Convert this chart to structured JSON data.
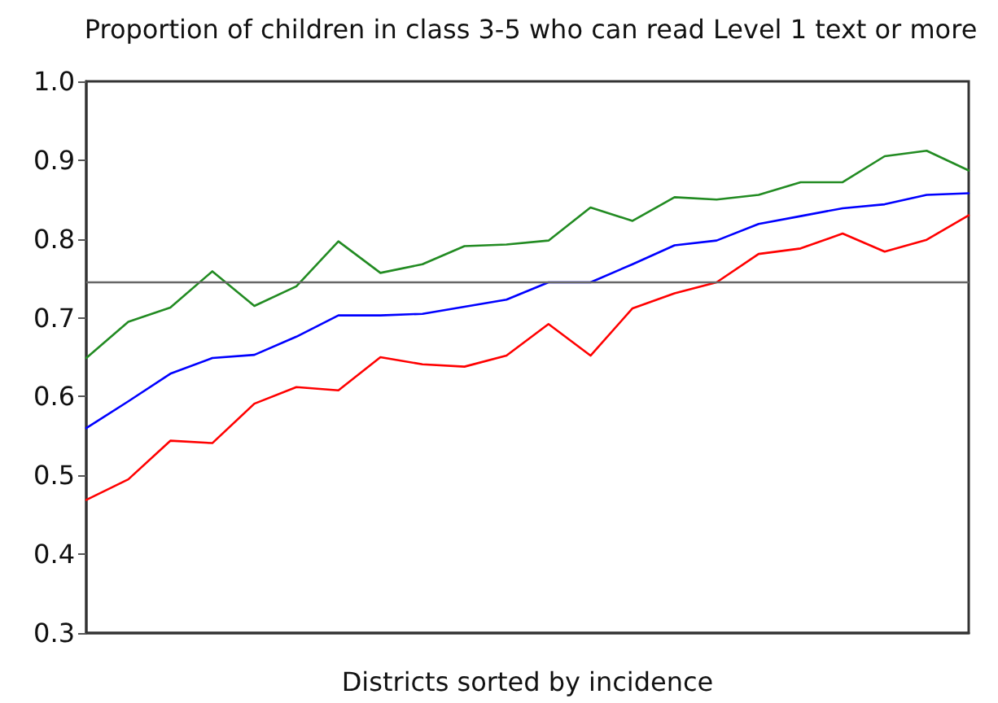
{
  "chart_data": {
    "type": "line",
    "title": "Proportion of children in class 3-5 who can read Level 1 text or more",
    "xlabel": "Districts sorted by incidence",
    "categories": [
      null,
      null,
      null,
      null,
      null,
      null,
      null,
      null,
      null,
      null,
      null,
      null,
      null,
      null,
      null,
      null,
      null,
      null,
      null,
      null,
      null,
      null
    ],
    "series": [
      {
        "color": "#228b22",
        "values": [
          0.649,
          0.695,
          0.713,
          0.759,
          0.715,
          0.74,
          0.797,
          0.757,
          0.768,
          0.791,
          0.793,
          0.798,
          0.84,
          0.823,
          0.853,
          0.85,
          0.856,
          0.872,
          0.872,
          0.905,
          0.912,
          0.887
        ]
      },
      {
        "color": "#0000ff",
        "values": [
          0.56,
          0.594,
          0.629,
          0.649,
          0.653,
          0.676,
          0.703,
          0.703,
          0.705,
          0.714,
          0.723,
          0.745,
          0.745,
          0.768,
          0.792,
          0.798,
          0.819,
          0.829,
          0.839,
          0.844,
          0.856,
          0.858
        ]
      },
      {
        "color": "#ff0000",
        "values": [
          0.469,
          0.495,
          0.544,
          0.541,
          0.591,
          0.612,
          0.608,
          0.65,
          0.641,
          0.638,
          0.652,
          0.692,
          0.652,
          0.712,
          0.731,
          0.745,
          0.781,
          0.788,
          0.807,
          0.784,
          0.799,
          0.83
        ]
      }
    ],
    "ylim": [
      0.3,
      1.0
    ],
    "yticks": [
      0.3,
      0.4,
      0.5,
      0.6,
      0.7,
      0.8,
      0.9,
      {
        "value": 1.0,
        "label": "1.0"
      }
    ],
    "ref_lines": [
      {
        "axis": "y",
        "value": 0.746,
        "color": "#666666"
      }
    ],
    "grid": false,
    "marker": "none",
    "line_style": "solid",
    "tick_labels": "y"
  }
}
